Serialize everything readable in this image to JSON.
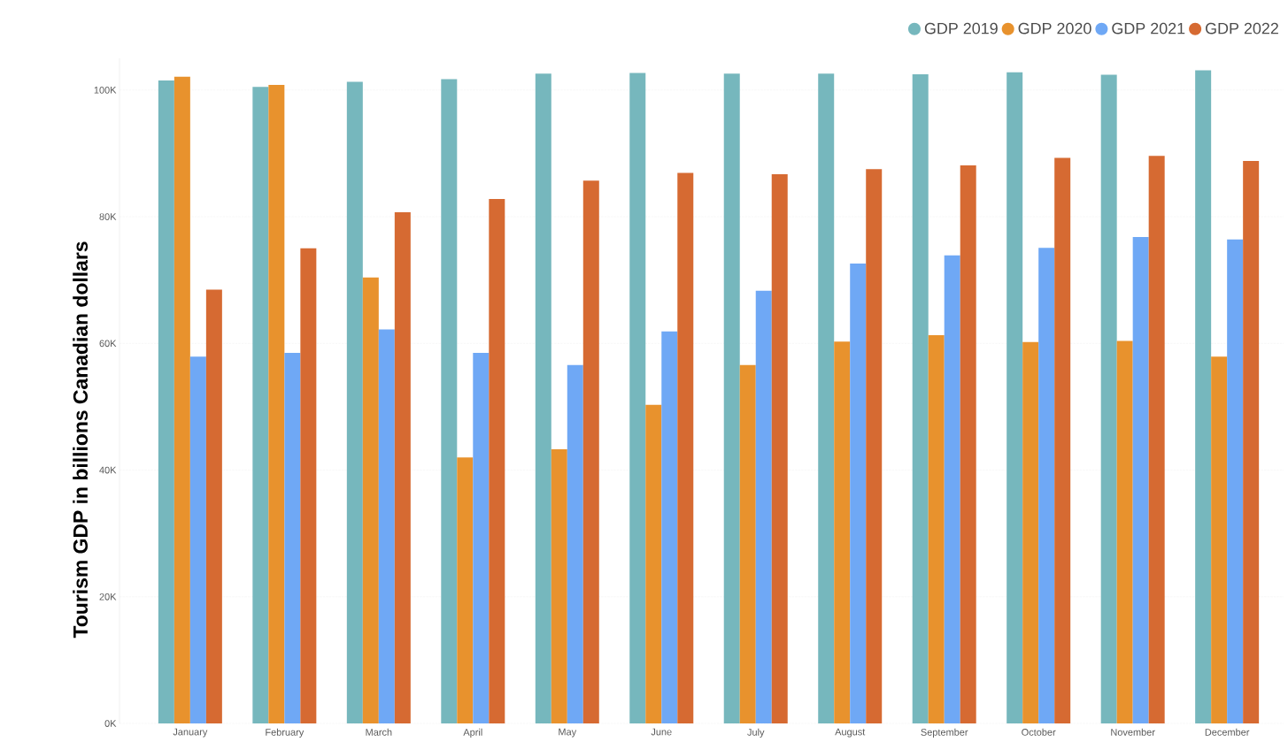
{
  "chart_data": {
    "type": "bar",
    "ylabel": "Tourism GDP in billions Canadian dollars",
    "categories": [
      "January",
      "February",
      "March",
      "April",
      "May",
      "June",
      "July",
      "August",
      "September",
      "October",
      "November",
      "December"
    ],
    "series": [
      {
        "name": "GDP 2019",
        "color": "#76b7bd",
        "values": [
          101500,
          100500,
          101300,
          101700,
          102600,
          102700,
          102600,
          102600,
          102500,
          102800,
          102400,
          103100
        ]
      },
      {
        "name": "GDP 2020",
        "color": "#e8922d",
        "values": [
          102100,
          100800,
          70400,
          42000,
          43300,
          50300,
          56600,
          60300,
          61300,
          60200,
          60400,
          57900
        ]
      },
      {
        "name": "GDP 2021",
        "color": "#6fa8f5",
        "values": [
          57900,
          58500,
          62200,
          58500,
          56600,
          61900,
          68300,
          72600,
          73900,
          75100,
          76800,
          76400
        ]
      },
      {
        "name": "GDP 2022",
        "color": "#d66a32",
        "values": [
          68500,
          75000,
          80700,
          82800,
          85700,
          86900,
          86700,
          87500,
          88100,
          89300,
          89600,
          88800
        ]
      }
    ],
    "ylim": [
      0,
      105000
    ],
    "yticks": [
      {
        "value": 0,
        "label": "0K"
      },
      {
        "value": 20000,
        "label": "20K"
      },
      {
        "value": 40000,
        "label": "40K"
      },
      {
        "value": 60000,
        "label": "60K"
      },
      {
        "value": 80000,
        "label": "80K"
      },
      {
        "value": 100000,
        "label": "100K"
      }
    ],
    "grid": "y",
    "legend": "top right"
  }
}
